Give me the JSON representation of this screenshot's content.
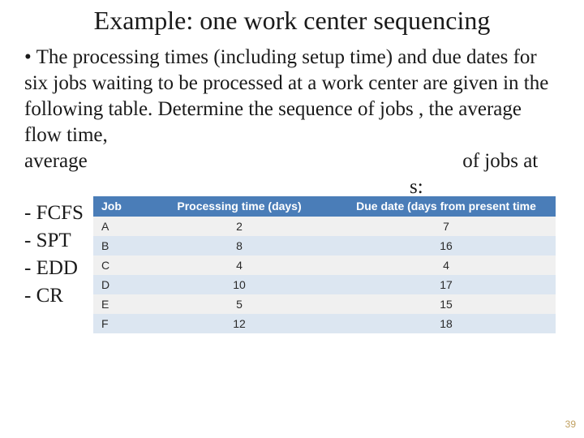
{
  "slide": {
    "title": "Example: one work center sequencing",
    "title_fontsize": 32,
    "title_color": "#1a1a1a"
  },
  "body": {
    "text_color": "#1a1a1a",
    "fontsize": 25,
    "items": [
      {
        "type": "bullet",
        "text": "The processing times (including setup time) and due dates for six jobs waiting to be processed at a work center are given in the following table. Determine the sequence of jobs , the average flow time, average                                                                          of jobs at                                                                             s:"
      },
      {
        "type": "dash",
        "text": "FCFS"
      },
      {
        "type": "dash",
        "text": "SPT"
      },
      {
        "type": "dash",
        "text": "EDD"
      },
      {
        "type": "dash",
        "text": "CR"
      }
    ]
  },
  "table": {
    "columns": [
      {
        "label": "Job",
        "class": "col-job"
      },
      {
        "label": "Processing time (days)",
        "class": "col-proc"
      },
      {
        "label": "Due date (days from present time",
        "class": "col-due"
      }
    ],
    "rows": [
      [
        "A",
        "2",
        "7"
      ],
      [
        "B",
        "8",
        "16"
      ],
      [
        "C",
        "4",
        "4"
      ],
      [
        "D",
        "10",
        "17"
      ],
      [
        "E",
        "5",
        "15"
      ],
      [
        "F",
        "12",
        "18"
      ]
    ],
    "header_bg": "#4a7db8",
    "header_fg": "#ffffff",
    "row_odd_bg": "#f0f0f0",
    "row_even_bg": "#dce6f1",
    "fontsize": 14
  },
  "page_number": "39",
  "page_number_color": "#c0a060"
}
